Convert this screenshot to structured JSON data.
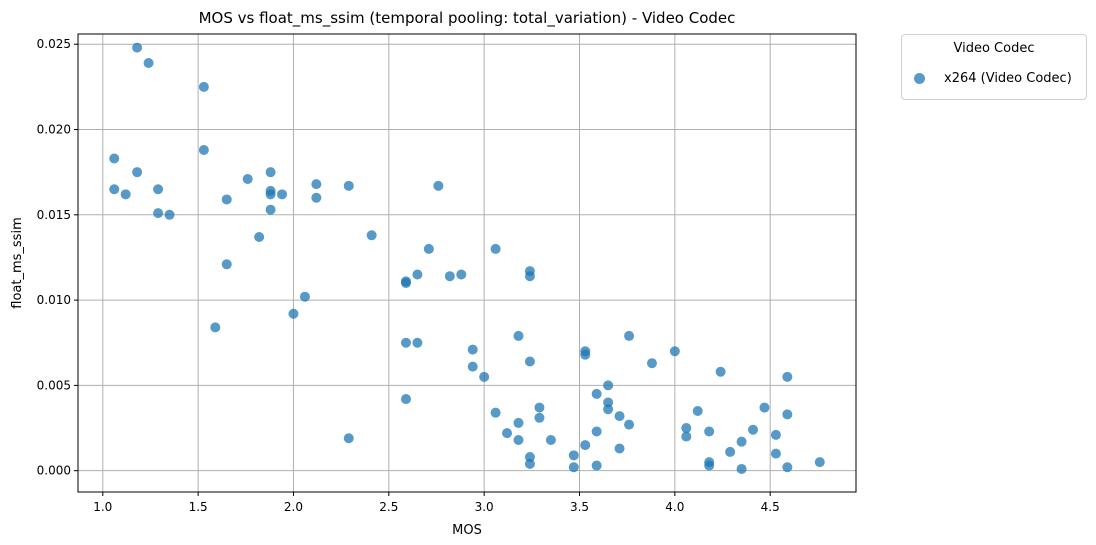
{
  "chart_data": {
    "type": "scatter",
    "title": "MOS vs float_ms_ssim (temporal pooling: total_variation) - Video Codec",
    "xlabel": "MOS",
    "ylabel": "float_ms_ssim",
    "xlim": [
      0.87,
      4.95
    ],
    "ylim": [
      -0.00125,
      0.0256
    ],
    "xticks": [
      "1.0",
      "1.5",
      "2.0",
      "2.5",
      "3.0",
      "3.5",
      "4.0",
      "4.5"
    ],
    "xtick_values": [
      1.0,
      1.5,
      2.0,
      2.5,
      3.0,
      3.5,
      4.0,
      4.5
    ],
    "yticks": [
      "0.000",
      "0.005",
      "0.010",
      "0.015",
      "0.020",
      "0.025"
    ],
    "ytick_values": [
      0,
      0.005,
      0.01,
      0.015,
      0.02,
      0.025
    ],
    "grid": true,
    "legend": {
      "title": "Video Codec",
      "placement": "outside right"
    },
    "series": [
      {
        "name": "x264 (Video Codec)",
        "color": "#1f77b4",
        "x": [
          1.18,
          1.24,
          1.53,
          1.06,
          1.18,
          1.06,
          1.12,
          1.29,
          1.29,
          1.35,
          1.53,
          1.65,
          1.65,
          1.76,
          1.82,
          1.88,
          1.88,
          1.88,
          1.88,
          1.94,
          2.12,
          2.12,
          2.29,
          1.59,
          2.0,
          2.06,
          2.29,
          2.41,
          2.59,
          2.59,
          2.59,
          2.59,
          2.65,
          2.65,
          2.71,
          2.76,
          2.82,
          2.88,
          2.94,
          2.94,
          3.0,
          3.06,
          3.06,
          3.12,
          3.18,
          3.18,
          3.18,
          3.24,
          3.24,
          3.24,
          3.24,
          3.24,
          3.29,
          3.29,
          3.35,
          3.47,
          3.47,
          3.53,
          3.53,
          3.53,
          3.59,
          3.59,
          3.59,
          3.65,
          3.65,
          3.65,
          3.71,
          3.71,
          3.76,
          3.76,
          3.88,
          4.0,
          4.06,
          4.06,
          4.12,
          4.18,
          4.18,
          4.18,
          4.24,
          4.29,
          4.35,
          4.35,
          4.41,
          4.47,
          4.53,
          4.53,
          4.59,
          4.59,
          4.59,
          4.76
        ],
        "y": [
          0.0248,
          0.0239,
          0.0225,
          0.0183,
          0.0175,
          0.0165,
          0.0162,
          0.0165,
          0.0151,
          0.015,
          0.0188,
          0.0159,
          0.0121,
          0.0171,
          0.0137,
          0.0175,
          0.0164,
          0.0162,
          0.0153,
          0.0162,
          0.0168,
          0.016,
          0.0167,
          0.0084,
          0.0092,
          0.0102,
          0.0019,
          0.0138,
          0.0111,
          0.011,
          0.0075,
          0.0042,
          0.0115,
          0.0075,
          0.013,
          0.0167,
          0.0114,
          0.0115,
          0.0071,
          0.0061,
          0.0055,
          0.013,
          0.0034,
          0.0022,
          0.0079,
          0.0028,
          0.0018,
          0.0117,
          0.0114,
          0.0064,
          0.0008,
          0.0004,
          0.0037,
          0.0031,
          0.0018,
          0.0009,
          0.0002,
          0.007,
          0.0068,
          0.0015,
          0.0045,
          0.0023,
          0.0003,
          0.005,
          0.004,
          0.0036,
          0.0032,
          0.0013,
          0.0079,
          0.0027,
          0.0063,
          0.007,
          0.0025,
          0.002,
          0.0035,
          0.0023,
          0.0005,
          0.0003,
          0.0058,
          0.0011,
          0.0017,
          0.0001,
          0.0024,
          0.0037,
          0.0021,
          0.001,
          0.0055,
          0.0033,
          0.0002,
          0.0005
        ]
      }
    ]
  }
}
